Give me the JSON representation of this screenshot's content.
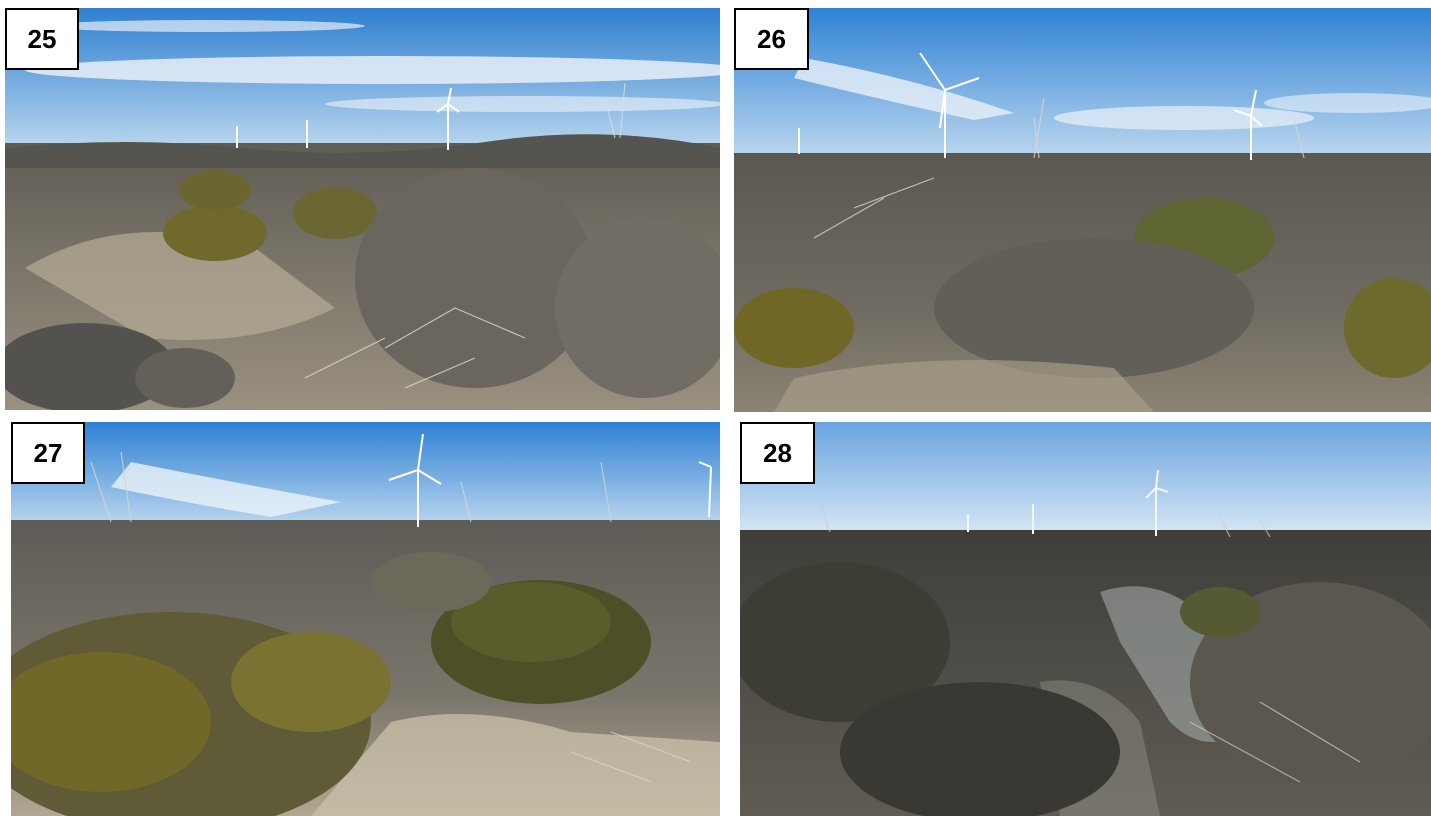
{
  "panels": [
    {
      "label": "25",
      "description_icon": "shrubland-wind-farm-photo"
    },
    {
      "label": "26",
      "description_icon": "shrubland-wind-farm-photo"
    },
    {
      "label": "27",
      "description_icon": "shrubland-wind-farm-photo"
    },
    {
      "label": "28",
      "description_icon": "shrubland-wind-farm-photo"
    }
  ],
  "colors": {
    "sky_top": "#3b86d6",
    "sky_horizon": "#cfe3f2",
    "shrub_gray": "#6d6a62",
    "shrub_olive": "#6f6a2c",
    "soil": "#cfc4ad",
    "label_bg": "#ffffff",
    "label_border": "#000000"
  }
}
